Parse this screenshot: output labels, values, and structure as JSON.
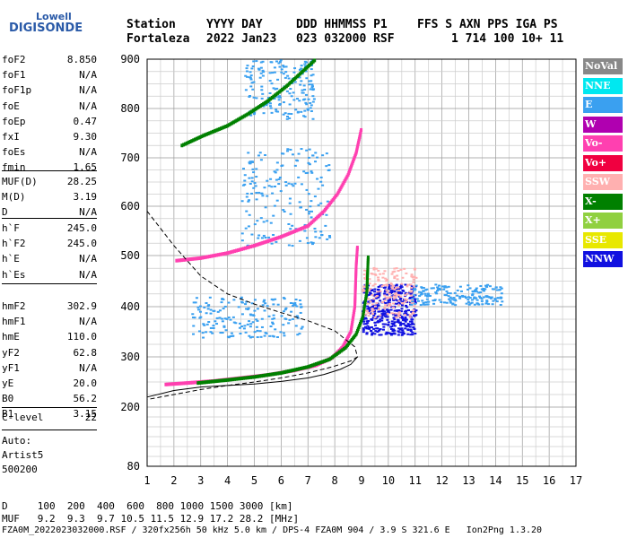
{
  "logo": {
    "top": "Lowell",
    "main": "DIGISONDE"
  },
  "header": {
    "labels": [
      "Station",
      "YYYY DAY",
      "DDD HHMMSS P1",
      "FFS S AXN PPS IGA PS"
    ],
    "station": "Fortaleza",
    "date": "2022 Jan23",
    "ddd_time": "023 032000 RSF",
    "settings": "1 714 100 10+ 11"
  },
  "params_group1": [
    {
      "name": "foF2",
      "value": "8.850"
    },
    {
      "name": "foF1",
      "value": "N/A"
    },
    {
      "name": "foF1p",
      "value": "N/A"
    },
    {
      "name": "foE",
      "value": "N/A"
    },
    {
      "name": "foEp",
      "value": "0.47"
    },
    {
      "name": "fxI",
      "value": "9.30"
    },
    {
      "name": "foEs",
      "value": "N/A"
    },
    {
      "name": "fmin",
      "value": "1.65"
    }
  ],
  "params_group2": [
    {
      "name": "MUF(D)",
      "value": "28.25"
    },
    {
      "name": "M(D)",
      "value": "3.19"
    },
    {
      "name": "D",
      "value": "N/A"
    }
  ],
  "params_group3": [
    {
      "name": "h`F",
      "value": "245.0"
    },
    {
      "name": "h`F2",
      "value": "245.0"
    },
    {
      "name": "h`E",
      "value": "N/A"
    },
    {
      "name": "h`Es",
      "value": "N/A"
    }
  ],
  "params_group4": [
    {
      "name": "hmF2",
      "value": "302.9"
    },
    {
      "name": "hmF1",
      "value": "N/A"
    },
    {
      "name": "hmE",
      "value": "110.0"
    },
    {
      "name": "yF2",
      "value": "62.8"
    },
    {
      "name": "yF1",
      "value": "N/A"
    },
    {
      "name": "yE",
      "value": "20.0"
    },
    {
      "name": "B0",
      "value": "56.2"
    },
    {
      "name": "B1",
      "value": "3.15"
    }
  ],
  "clevel": {
    "name": "C-level",
    "value": "22"
  },
  "auto": [
    "Auto:",
    "Artist5",
    "500200"
  ],
  "footer": {
    "d_row": "D     100  200  400  600  800 1000 1500 3000 [km]",
    "muf_row": "MUF   9.2  9.3  9.7 10.5 11.5 12.9 17.2 28.2 [MHz]",
    "info_row": "FZA0M_2022023032000.RSF / 320fx256h 50 kHz 5.0 km / DPS-4 FZA0M 904 / 3.9 S 321.6 E   Ion2Png 1.3.20"
  },
  "legend": [
    {
      "label": "NoVal",
      "color": "#888888"
    },
    {
      "label": "NNE",
      "color": "#00e8f0"
    },
    {
      "label": "E",
      "color": "#3aa0f0"
    },
    {
      "label": "W",
      "color": "#b000b0"
    },
    {
      "label": "Vo-",
      "color": "#ff40b0"
    },
    {
      "label": "Vo+",
      "color": "#f00040"
    },
    {
      "label": "SSW",
      "color": "#ffb0b0"
    },
    {
      "label": "X-",
      "color": "#008000"
    },
    {
      "label": "X+",
      "color": "#90d040"
    },
    {
      "label": "SSE",
      "color": "#e8e800"
    },
    {
      "label": "NNW",
      "color": "#1010e0"
    }
  ],
  "chart_data": {
    "type": "scatter",
    "xlim": [
      1,
      17
    ],
    "ylim": [
      80,
      900
    ],
    "x_ticks": [
      "1",
      "2",
      "3",
      "4",
      "5",
      "6",
      "7",
      "8",
      "9",
      "10",
      "11",
      "12",
      "13",
      "14",
      "15",
      "16",
      "17"
    ],
    "y_ticks": [
      "80",
      "200",
      "300",
      "400",
      "500",
      "600",
      "700",
      "800",
      "900"
    ],
    "grid": true,
    "traces": [
      {
        "series": "Vo-",
        "points": [
          [
            1.7,
            245
          ],
          [
            2.5,
            248
          ],
          [
            3.5,
            252
          ],
          [
            4.5,
            258
          ],
          [
            5.5,
            264
          ],
          [
            6.5,
            273
          ],
          [
            7.3,
            283
          ],
          [
            7.9,
            298
          ],
          [
            8.3,
            320
          ],
          [
            8.6,
            350
          ],
          [
            8.75,
            400
          ],
          [
            8.8,
            480
          ],
          [
            8.85,
            520
          ]
        ]
      },
      {
        "series": "X-",
        "points": [
          [
            2.9,
            248
          ],
          [
            4,
            254
          ],
          [
            5,
            260
          ],
          [
            6,
            268
          ],
          [
            7,
            280
          ],
          [
            7.8,
            295
          ],
          [
            8.4,
            318
          ],
          [
            8.8,
            345
          ],
          [
            9.05,
            380
          ],
          [
            9.2,
            430
          ],
          [
            9.25,
            500
          ]
        ]
      },
      {
        "series": "Vo-",
        "points": [
          [
            2.1,
            490
          ],
          [
            3,
            495
          ],
          [
            4,
            505
          ],
          [
            5,
            520
          ],
          [
            6,
            538
          ],
          [
            7,
            560
          ],
          [
            7.6,
            590
          ],
          [
            8.1,
            625
          ],
          [
            8.5,
            665
          ],
          [
            8.8,
            710
          ],
          [
            9,
            760
          ]
        ]
      },
      {
        "series": "X-",
        "points": [
          [
            2.3,
            725
          ],
          [
            3.1,
            745
          ],
          [
            4,
            765
          ],
          [
            4.8,
            790
          ],
          [
            5.5,
            815
          ],
          [
            6.2,
            845
          ],
          [
            6.8,
            875
          ],
          [
            7.3,
            900
          ]
        ]
      }
    ],
    "clouds": [
      {
        "series": "NNW",
        "x": [
          9.0,
          11.0
        ],
        "y": [
          345,
          445
        ]
      },
      {
        "series": "SSW",
        "x": [
          9.0,
          11.0
        ],
        "y": [
          380,
          480
        ]
      },
      {
        "series": "E",
        "x": [
          10.8,
          14.2
        ],
        "y": [
          405,
          445
        ]
      },
      {
        "series": "E",
        "x": [
          2.6,
          6.8
        ],
        "y": [
          340,
          420
        ]
      },
      {
        "series": "E",
        "x": [
          4.5,
          7.8
        ],
        "y": [
          520,
          720
        ]
      },
      {
        "series": "E",
        "x": [
          4.6,
          7.2
        ],
        "y": [
          780,
          900
        ]
      }
    ],
    "profile_dashed": [
      [
        1,
        590
      ],
      [
        2,
        520
      ],
      [
        3,
        460
      ],
      [
        4,
        425
      ],
      [
        5,
        405
      ],
      [
        6,
        388
      ],
      [
        7,
        372
      ],
      [
        8,
        352
      ],
      [
        8.75,
        320
      ],
      [
        8.85,
        300
      ],
      [
        8.6,
        292
      ],
      [
        7.9,
        280
      ],
      [
        7,
        268
      ],
      [
        6,
        258
      ],
      [
        5,
        250
      ],
      [
        4,
        243
      ],
      [
        3,
        235
      ],
      [
        2,
        225
      ],
      [
        1,
        215
      ]
    ],
    "profile_solid": [
      [
        1,
        220
      ],
      [
        2,
        233
      ],
      [
        3,
        240
      ],
      [
        4,
        243
      ],
      [
        5,
        246
      ],
      [
        6,
        251
      ],
      [
        7,
        258
      ],
      [
        7.6,
        265
      ],
      [
        8.2,
        275
      ],
      [
        8.6,
        285
      ],
      [
        8.85,
        300
      ]
    ]
  }
}
